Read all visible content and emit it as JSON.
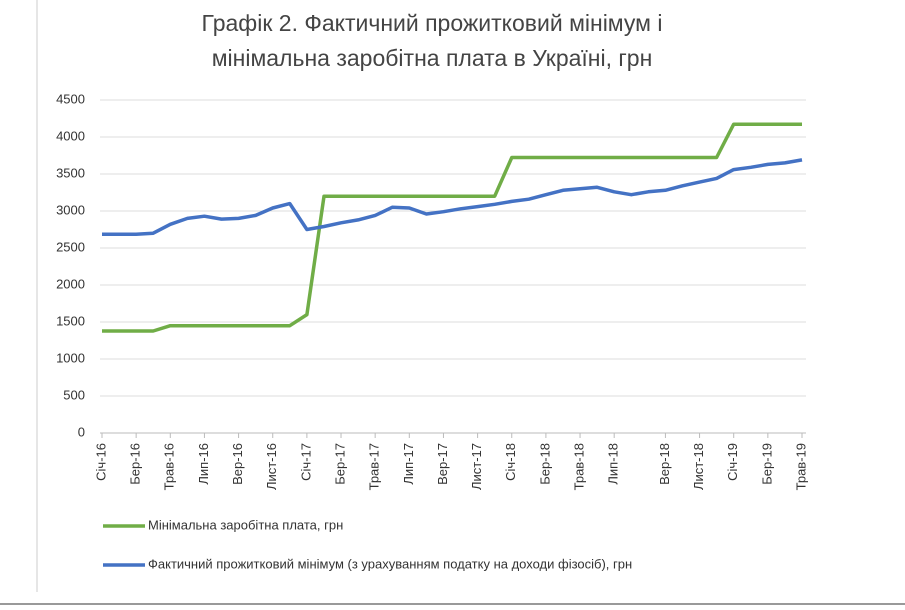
{
  "chart_data": {
    "type": "line",
    "title": [
      "Графік 2. Фактичний прожитковий мінімум і",
      "мінімальна заробітна плата в Україні, грн"
    ],
    "categories": [
      "Січ-16",
      null,
      "Бер-16",
      null,
      "Трав-16",
      null,
      "Лип-16",
      null,
      "Вер-16",
      null,
      "Лист-16",
      null,
      "Січ-17",
      null,
      "Бер-17",
      null,
      "Трав-17",
      null,
      "Лип-17",
      null,
      "Вер-17",
      null,
      "Лист-17",
      null,
      "Січ-18",
      null,
      "Бер-18",
      null,
      "Трав-18",
      null,
      "Лип-18",
      null,
      null,
      "Вер-18",
      null,
      "Лист-18",
      null,
      "Січ-19",
      null,
      "Бер-19",
      null,
      "Трав-19"
    ],
    "series": [
      {
        "name": "Мінімальна заробітна плата, грн",
        "color": "#70ad47",
        "values": [
          1378,
          1378,
          1378,
          1378,
          1450,
          1450,
          1450,
          1450,
          1450,
          1450,
          1450,
          1450,
          1600,
          3200,
          3200,
          3200,
          3200,
          3200,
          3200,
          3200,
          3200,
          3200,
          3200,
          3200,
          3723,
          3723,
          3723,
          3723,
          3723,
          3723,
          3723,
          3723,
          3723,
          3723,
          3723,
          3723,
          3723,
          4173,
          4173,
          4173,
          4173,
          4173
        ]
      },
      {
        "name": "Фактичний прожитковий мінімум (з урахуванням податку на доходи фізосіб), грн",
        "color": "#4472c4",
        "values": [
          2685,
          2685,
          2685,
          2700,
          2820,
          2900,
          2930,
          2890,
          2900,
          2940,
          3040,
          3100,
          2750,
          2790,
          2840,
          2880,
          2940,
          3050,
          3040,
          2960,
          2990,
          3030,
          3060,
          3090,
          3130,
          3160,
          3220,
          3280,
          3300,
          3320,
          3260,
          3220,
          3260,
          3280,
          3340,
          3390,
          3440,
          3560,
          3590,
          3630,
          3650,
          3690
        ]
      }
    ],
    "ylim": [
      0,
      4500
    ],
    "yticks": [
      0,
      500,
      1000,
      1500,
      2000,
      2500,
      3000,
      3500,
      4000,
      4500
    ],
    "grid": true
  }
}
